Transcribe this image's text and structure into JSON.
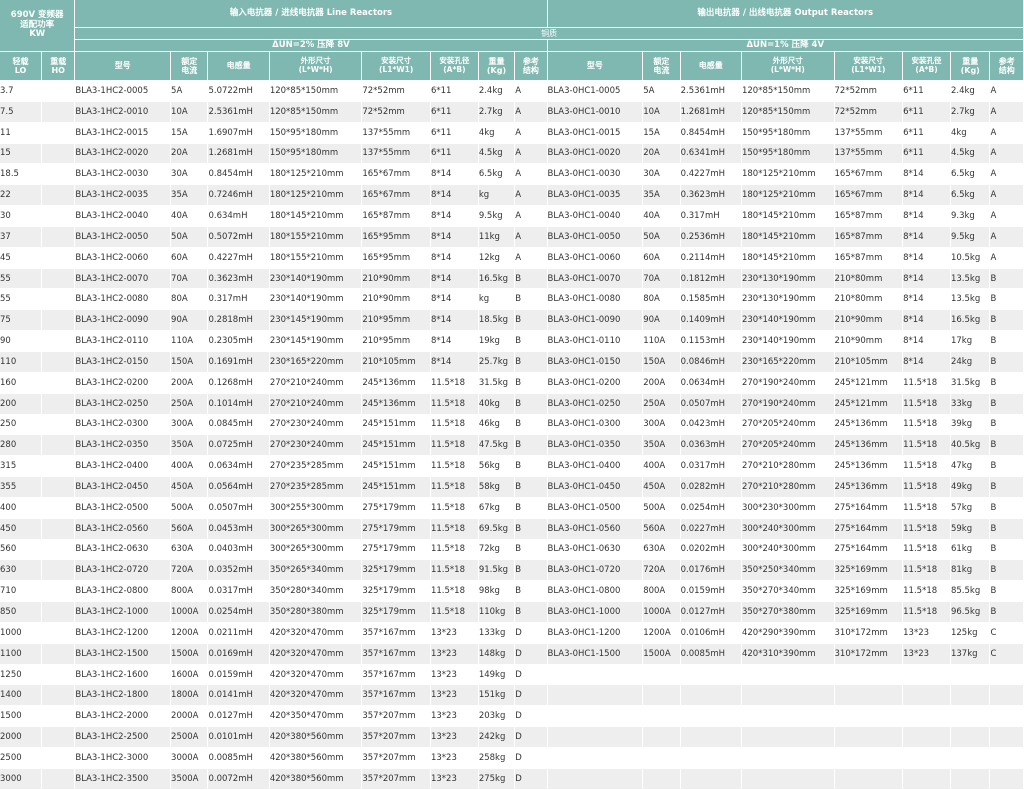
{
  "header": {
    "vfd_power": "690V 变频器\n适配功率\nKW",
    "line_title": "输入电抗器 / 进线电抗器 Line Reactors",
    "output_title": "输出电抗器 / 出线电抗器 Output Reactors",
    "material": "铜质",
    "line_drop": "ΔUN=2% 压降 8V",
    "output_drop": "ΔUN=1% 压降 4V",
    "col_lo": "轻载\nLO",
    "col_ho": "重载\nHO",
    "col_model": "型号",
    "col_current": "额定\n电流",
    "col_inductance": "电感量",
    "col_dims": "外形尺寸\n(L*W*H)",
    "col_mount": "安装尺寸\n(L1*W1)",
    "col_hole": "安装孔径\n(A*B)",
    "col_weight": "重量\n(Kg)",
    "col_ref": "参考\n结构"
  },
  "rows": [
    [
      "3.7",
      "",
      "BLA3-1HC2-0005",
      "5A",
      "5.0722mH",
      "120*85*150mm",
      "72*52mm",
      "6*11",
      "2.4kg",
      "A",
      "BLA3-0HC1-0005",
      "5A",
      "2.5361mH",
      "120*85*150mm",
      "72*52mm",
      "6*11",
      "2.4kg",
      "A"
    ],
    [
      "7.5",
      "",
      "BLA3-1HC2-0010",
      "10A",
      "2.5361mH",
      "120*85*150mm",
      "72*52mm",
      "6*11",
      "2.7kg",
      "A",
      "BLA3-0HC1-0010",
      "10A",
      "1.2681mH",
      "120*85*150mm",
      "72*52mm",
      "6*11",
      "2.7kg",
      "A"
    ],
    [
      "11",
      "",
      "BLA3-1HC2-0015",
      "15A",
      "1.6907mH",
      "150*95*180mm",
      "137*55mm",
      "6*11",
      "4kg",
      "A",
      "BLA3-0HC1-0015",
      "15A",
      "0.8454mH",
      "150*95*180mm",
      "137*55mm",
      "6*11",
      "4kg",
      "A"
    ],
    [
      "15",
      "",
      "BLA3-1HC2-0020",
      "20A",
      "1.2681mH",
      "150*95*180mm",
      "137*55mm",
      "6*11",
      "4.5kg",
      "A",
      "BLA3-0HC1-0020",
      "20A",
      "0.6341mH",
      "150*95*180mm",
      "137*55mm",
      "6*11",
      "4.5kg",
      "A"
    ],
    [
      "18.5",
      "",
      "BLA3-1HC2-0030",
      "30A",
      "0.8454mH",
      "180*125*210mm",
      "165*67mm",
      "8*14",
      "6.5kg",
      "A",
      "BLA3-0HC1-0030",
      "30A",
      "0.4227mH",
      "180*125*210mm",
      "165*67mm",
      "8*14",
      "6.5kg",
      "A"
    ],
    [
      "22",
      "",
      "BLA3-1HC2-0035",
      "35A",
      "0.7246mH",
      "180*125*210mm",
      "165*67mm",
      "8*14",
      "kg",
      "A",
      "BLA3-0HC1-0035",
      "35A",
      "0.3623mH",
      "180*125*210mm",
      "165*67mm",
      "8*14",
      "6.5kg",
      "A"
    ],
    [
      "30",
      "",
      "BLA3-1HC2-0040",
      "40A",
      "0.634mH",
      "180*145*210mm",
      "165*87mm",
      "8*14",
      "9.5kg",
      "A",
      "BLA3-0HC1-0040",
      "40A",
      "0.317mH",
      "180*145*210mm",
      "165*87mm",
      "8*14",
      "9.3kg",
      "A"
    ],
    [
      "37",
      "",
      "BLA3-1HC2-0050",
      "50A",
      "0.5072mH",
      "180*155*210mm",
      "165*95mm",
      "8*14",
      "11kg",
      "A",
      "BLA3-0HC1-0050",
      "50A",
      "0.2536mH",
      "180*145*210mm",
      "165*87mm",
      "8*14",
      "9.5kg",
      "A"
    ],
    [
      "45",
      "",
      "BLA3-1HC2-0060",
      "60A",
      "0.4227mH",
      "180*155*210mm",
      "165*95mm",
      "8*14",
      "12kg",
      "A",
      "BLA3-0HC1-0060",
      "60A",
      "0.2114mH",
      "180*145*210mm",
      "165*87mm",
      "8*14",
      "10.5kg",
      "A"
    ],
    [
      "55",
      "",
      "BLA3-1HC2-0070",
      "70A",
      "0.3623mH",
      "230*140*190mm",
      "210*90mm",
      "8*14",
      "16.5kg",
      "B",
      "BLA3-0HC1-0070",
      "70A",
      "0.1812mH",
      "230*130*190mm",
      "210*80mm",
      "8*14",
      "13.5kg",
      "B"
    ],
    [
      "55",
      "",
      "BLA3-1HC2-0080",
      "80A",
      "0.317mH",
      "230*140*190mm",
      "210*90mm",
      "8*14",
      "kg",
      "B",
      "BLA3-0HC1-0080",
      "80A",
      "0.1585mH",
      "230*130*190mm",
      "210*80mm",
      "8*14",
      "13.5kg",
      "B"
    ],
    [
      "75",
      "",
      "BLA3-1HC2-0090",
      "90A",
      "0.2818mH",
      "230*145*190mm",
      "210*95mm",
      "8*14",
      "18.5kg",
      "B",
      "BLA3-0HC1-0090",
      "90A",
      "0.1409mH",
      "230*140*190mm",
      "210*90mm",
      "8*14",
      "16.5kg",
      "B"
    ],
    [
      "90",
      "",
      "BLA3-1HC2-0110",
      "110A",
      "0.2305mH",
      "230*145*190mm",
      "210*95mm",
      "8*14",
      "19kg",
      "B",
      "BLA3-0HC1-0110",
      "110A",
      "0.1153mH",
      "230*140*190mm",
      "210*90mm",
      "8*14",
      "17kg",
      "B"
    ],
    [
      "110",
      "",
      "BLA3-1HC2-0150",
      "150A",
      "0.1691mH",
      "230*165*220mm",
      "210*105mm",
      "8*14",
      "25.7kg",
      "B",
      "BLA3-0HC1-0150",
      "150A",
      "0.0846mH",
      "230*165*220mm",
      "210*105mm",
      "8*14",
      "24kg",
      "B"
    ],
    [
      "160",
      "",
      "BLA3-1HC2-0200",
      "200A",
      "0.1268mH",
      "270*210*240mm",
      "245*136mm",
      "11.5*18",
      "31.5kg",
      "B",
      "BLA3-0HC1-0200",
      "200A",
      "0.0634mH",
      "270*190*240mm",
      "245*121mm",
      "11.5*18",
      "31.5kg",
      "B"
    ],
    [
      "200",
      "",
      "BLA3-1HC2-0250",
      "250A",
      "0.1014mH",
      "270*210*240mm",
      "245*136mm",
      "11.5*18",
      "40kg",
      "B",
      "BLA3-0HC1-0250",
      "250A",
      "0.0507mH",
      "270*190*240mm",
      "245*121mm",
      "11.5*18",
      "33kg",
      "B"
    ],
    [
      "250",
      "",
      "BLA3-1HC2-0300",
      "300A",
      "0.0845mH",
      "270*230*240mm",
      "245*151mm",
      "11.5*18",
      "46kg",
      "B",
      "BLA3-0HC1-0300",
      "300A",
      "0.0423mH",
      "270*205*240mm",
      "245*136mm",
      "11.5*18",
      "39kg",
      "B"
    ],
    [
      "280",
      "",
      "BLA3-1HC2-0350",
      "350A",
      "0.0725mH",
      "270*230*240mm",
      "245*151mm",
      "11.5*18",
      "47.5kg",
      "B",
      "BLA3-0HC1-0350",
      "350A",
      "0.0363mH",
      "270*205*240mm",
      "245*136mm",
      "11.5*18",
      "40.5kg",
      "B"
    ],
    [
      "315",
      "",
      "BLA3-1HC2-0400",
      "400A",
      "0.0634mH",
      "270*235*285mm",
      "245*151mm",
      "11.5*18",
      "56kg",
      "B",
      "BLA3-0HC1-0400",
      "400A",
      "0.0317mH",
      "270*210*280mm",
      "245*136mm",
      "11.5*18",
      "47kg",
      "B"
    ],
    [
      "355",
      "",
      "BLA3-1HC2-0450",
      "450A",
      "0.0564mH",
      "270*235*285mm",
      "245*151mm",
      "11.5*18",
      "58kg",
      "B",
      "BLA3-0HC1-0450",
      "450A",
      "0.0282mH",
      "270*210*280mm",
      "245*136mm",
      "11.5*18",
      "49kg",
      "B"
    ],
    [
      "400",
      "",
      "BLA3-1HC2-0500",
      "500A",
      "0.0507mH",
      "300*255*300mm",
      "275*179mm",
      "11.5*18",
      "67kg",
      "B",
      "BLA3-0HC1-0500",
      "500A",
      "0.0254mH",
      "300*230*300mm",
      "275*164mm",
      "11.5*18",
      "57kg",
      "B"
    ],
    [
      "450",
      "",
      "BLA3-1HC2-0560",
      "560A",
      "0.0453mH",
      "300*265*300mm",
      "275*179mm",
      "11.5*18",
      "69.5kg",
      "B",
      "BLA3-0HC1-0560",
      "560A",
      "0.0227mH",
      "300*240*300mm",
      "275*164mm",
      "11.5*18",
      "59kg",
      "B"
    ],
    [
      "560",
      "",
      "BLA3-1HC2-0630",
      "630A",
      "0.0403mH",
      "300*265*300mm",
      "275*179mm",
      "11.5*18",
      "72kg",
      "B",
      "BLA3-0HC1-0630",
      "630A",
      "0.0202mH",
      "300*240*300mm",
      "275*164mm",
      "11.5*18",
      "61kg",
      "B"
    ],
    [
      "630",
      "",
      "BLA3-1HC2-0720",
      "720A",
      "0.0352mH",
      "350*265*340mm",
      "325*179mm",
      "11.5*18",
      "91.5kg",
      "B",
      "BLA3-0HC1-0720",
      "720A",
      "0.0176mH",
      "350*250*340mm",
      "325*169mm",
      "11.5*18",
      "81kg",
      "B"
    ],
    [
      "710",
      "",
      "BLA3-1HC2-0800",
      "800A",
      "0.0317mH",
      "350*280*340mm",
      "325*179mm",
      "11.5*18",
      "98kg",
      "B",
      "BLA3-0HC1-0800",
      "800A",
      "0.0159mH",
      "350*270*340mm",
      "325*169mm",
      "11.5*18",
      "85.5kg",
      "B"
    ],
    [
      "850",
      "",
      "BLA3-1HC2-1000",
      "1000A",
      "0.0254mH",
      "350*280*380mm",
      "325*179mm",
      "11.5*18",
      "110kg",
      "B",
      "BLA3-0HC1-1000",
      "1000A",
      "0.0127mH",
      "350*270*380mm",
      "325*169mm",
      "11.5*18",
      "96.5kg",
      "B"
    ],
    [
      "1000",
      "",
      "BLA3-1HC2-1200",
      "1200A",
      "0.0211mH",
      "420*320*470mm",
      "357*167mm",
      "13*23",
      "133kg",
      "D",
      "BLA3-0HC1-1200",
      "1200A",
      "0.0106mH",
      "420*290*390mm",
      "310*172mm",
      "13*23",
      "125kg",
      "C"
    ],
    [
      "1100",
      "",
      "BLA3-1HC2-1500",
      "1500A",
      "0.0169mH",
      "420*320*470mm",
      "357*167mm",
      "13*23",
      "148kg",
      "D",
      "BLA3-0HC1-1500",
      "1500A",
      "0.0085mH",
      "420*310*390mm",
      "310*172mm",
      "13*23",
      "137kg",
      "C"
    ],
    [
      "1250",
      "",
      "BLA3-1HC2-1600",
      "1600A",
      "0.0159mH",
      "420*320*470mm",
      "357*167mm",
      "13*23",
      "149kg",
      "D",
      "",
      "",
      "",
      "",
      "",
      "",
      "",
      ""
    ],
    [
      "1400",
      "",
      "BLA3-1HC2-1800",
      "1800A",
      "0.0141mH",
      "420*320*470mm",
      "357*167mm",
      "13*23",
      "151kg",
      "D",
      "",
      "",
      "",
      "",
      "",
      "",
      "",
      ""
    ],
    [
      "1500",
      "",
      "BLA3-1HC2-2000",
      "2000A",
      "0.0127mH",
      "420*350*470mm",
      "357*207mm",
      "13*23",
      "203kg",
      "D",
      "",
      "",
      "",
      "",
      "",
      "",
      "",
      ""
    ],
    [
      "2000",
      "",
      "BLA3-1HC2-2500",
      "2500A",
      "0.0101mH",
      "420*380*560mm",
      "357*207mm",
      "13*23",
      "242kg",
      "D",
      "",
      "",
      "",
      "",
      "",
      "",
      "",
      ""
    ],
    [
      "2500",
      "",
      "BLA3-1HC2-3000",
      "3000A",
      "0.0085mH",
      "420*380*560mm",
      "357*207mm",
      "13*23",
      "258kg",
      "D",
      "",
      "",
      "",
      "",
      "",
      "",
      "",
      ""
    ],
    [
      "3000",
      "",
      "BLA3-1HC2-3500",
      "3500A",
      "0.0072mH",
      "420*380*560mm",
      "357*207mm",
      "13*23",
      "275kg",
      "D",
      "",
      "",
      "",
      "",
      "",
      "",
      "",
      ""
    ]
  ]
}
